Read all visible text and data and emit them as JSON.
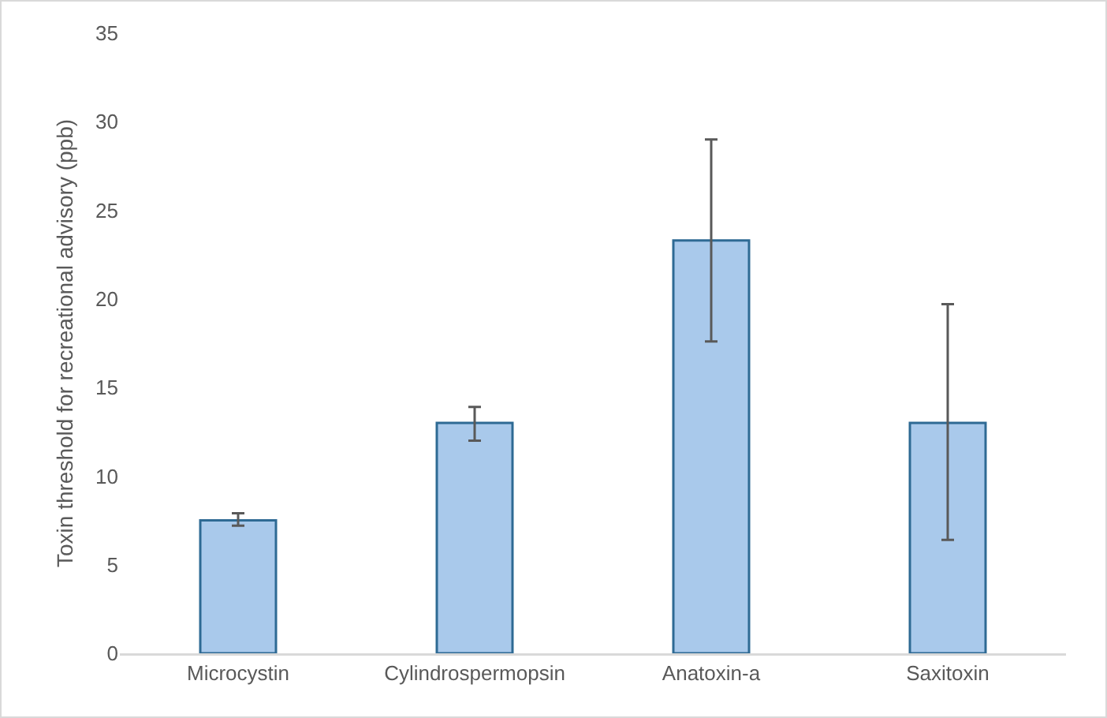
{
  "chart_data": {
    "type": "bar",
    "ylabel": "Toxin threshold for recreational advisory (ppb)",
    "categories": [
      "Microcystin",
      "Cylindrospermopsin",
      "Anatoxin-a",
      "Saxitoxin"
    ],
    "values": [
      7.5,
      13.0,
      23.3,
      13.0
    ],
    "errors": [
      [
        7.2,
        7.9
      ],
      [
        12.0,
        13.9
      ],
      [
        17.6,
        29.0
      ],
      [
        6.4,
        19.7
      ]
    ],
    "color": "#a9c9eb",
    "ylim": [
      0,
      35
    ],
    "yticks": [
      0,
      5,
      10,
      15,
      20,
      25,
      30,
      35
    ],
    "grid": false
  }
}
